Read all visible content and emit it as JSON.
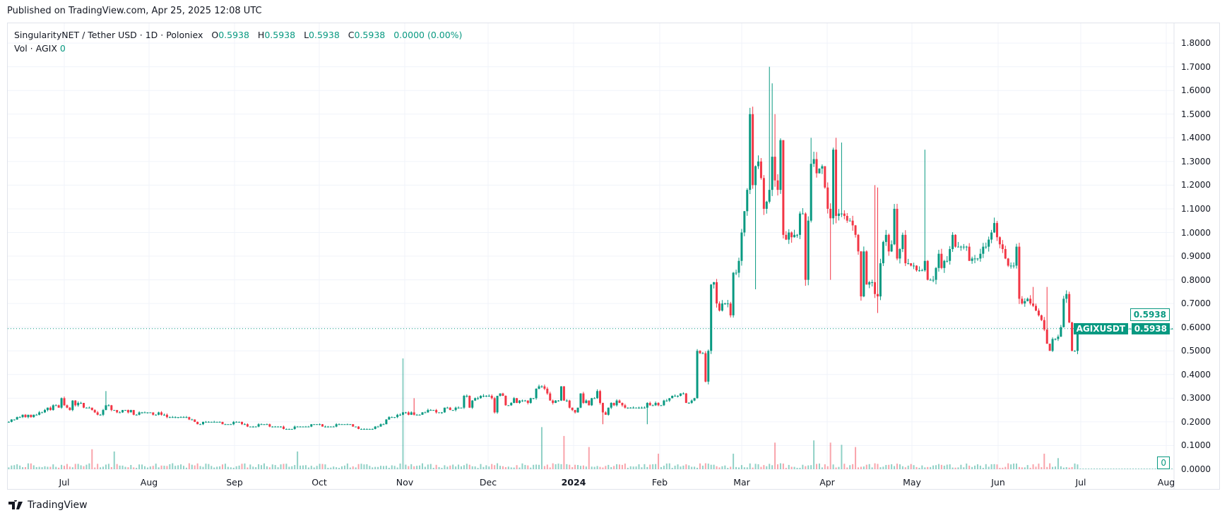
{
  "published": "Published on TradingView.com, Apr 25, 2025 12:08 UTC",
  "legend": {
    "symbol": "SingularityNET / Tether USD · 1D · Poloniex",
    "o_label": "O",
    "o": "0.5938",
    "h_label": "H",
    "h": "0.5938",
    "l_label": "L",
    "l": "0.5938",
    "c_label": "C",
    "c": "0.5938",
    "change": "0.0000 (0.00%)",
    "vol_label": "Vol · AGIX",
    "vol": "0"
  },
  "price_axis": [
    "1.8000",
    "1.7000",
    "1.6000",
    "1.5000",
    "1.4000",
    "1.3000",
    "1.2000",
    "1.1000",
    "1.0000",
    "0.9000",
    "0.8000",
    "0.7000",
    "0.6000",
    "0.5000",
    "0.4000",
    "0.3000",
    "0.2000",
    "0.1000",
    "0.0000"
  ],
  "badges": {
    "last_price_outline": "0.5938",
    "symbol_tag": "AGIXUSDT",
    "last_price": "0.5938",
    "volume": "0"
  },
  "time_axis": [
    "Jul",
    "Aug",
    "Sep",
    "Oct",
    "Nov",
    "Dec",
    "2024",
    "Feb",
    "Mar",
    "Apr",
    "May",
    "Jun",
    "Jul",
    "Aug"
  ],
  "brand": "TradingView",
  "colors": {
    "up": "#089981",
    "down": "#F23645",
    "grid": "#f0f3fa"
  },
  "chart_data": {
    "type": "candlestick",
    "title": "SingularityNET / Tether USD · 1D · Poloniex",
    "start_date": "2023-06-11",
    "interval": "1D",
    "ylim": [
      0,
      1.8
    ],
    "last_price": 0.5938,
    "close": [
      0.2,
      0.21,
      0.21,
      0.22,
      0.22,
      0.23,
      0.22,
      0.23,
      0.22,
      0.23,
      0.23,
      0.24,
      0.24,
      0.25,
      0.26,
      0.25,
      0.27,
      0.27,
      0.26,
      0.3,
      0.27,
      0.26,
      0.25,
      0.29,
      0.27,
      0.28,
      0.28,
      0.26,
      0.26,
      0.26,
      0.25,
      0.24,
      0.23,
      0.23,
      0.25,
      0.27,
      0.27,
      0.25,
      0.25,
      0.24,
      0.24,
      0.25,
      0.25,
      0.24,
      0.25,
      0.23,
      0.23,
      0.24,
      0.24,
      0.24,
      0.24,
      0.24,
      0.23,
      0.23,
      0.24,
      0.23,
      0.23,
      0.22,
      0.22,
      0.22,
      0.22,
      0.22,
      0.22,
      0.22,
      0.22,
      0.21,
      0.21,
      0.2,
      0.19,
      0.19,
      0.2,
      0.2,
      0.2,
      0.2,
      0.2,
      0.2,
      0.2,
      0.19,
      0.19,
      0.19,
      0.19,
      0.2,
      0.2,
      0.2,
      0.19,
      0.19,
      0.18,
      0.18,
      0.18,
      0.18,
      0.19,
      0.19,
      0.19,
      0.19,
      0.18,
      0.18,
      0.18,
      0.18,
      0.18,
      0.17,
      0.17,
      0.17,
      0.17,
      0.18,
      0.18,
      0.18,
      0.18,
      0.18,
      0.18,
      0.19,
      0.19,
      0.19,
      0.19,
      0.18,
      0.18,
      0.18,
      0.18,
      0.18,
      0.19,
      0.19,
      0.19,
      0.19,
      0.19,
      0.19,
      0.18,
      0.18,
      0.17,
      0.17,
      0.17,
      0.17,
      0.17,
      0.17,
      0.18,
      0.18,
      0.19,
      0.19,
      0.21,
      0.22,
      0.22,
      0.22,
      0.23,
      0.23,
      0.24,
      0.24,
      0.23,
      0.24,
      0.23,
      0.23,
      0.23,
      0.24,
      0.24,
      0.25,
      0.25,
      0.25,
      0.24,
      0.24,
      0.24,
      0.26,
      0.26,
      0.25,
      0.25,
      0.26,
      0.26,
      0.26,
      0.31,
      0.31,
      0.26,
      0.29,
      0.3,
      0.3,
      0.31,
      0.31,
      0.31,
      0.31,
      0.3,
      0.24,
      0.31,
      0.32,
      0.31,
      0.27,
      0.27,
      0.28,
      0.3,
      0.28,
      0.29,
      0.29,
      0.29,
      0.28,
      0.3,
      0.3,
      0.34,
      0.35,
      0.35,
      0.34,
      0.32,
      0.29,
      0.28,
      0.29,
      0.29,
      0.35,
      0.29,
      0.29,
      0.26,
      0.25,
      0.24,
      0.26,
      0.32,
      0.28,
      0.29,
      0.27,
      0.3,
      0.3,
      0.33,
      0.28,
      0.24,
      0.23,
      0.26,
      0.28,
      0.27,
      0.29,
      0.28,
      0.27,
      0.26,
      0.26,
      0.26,
      0.26,
      0.26,
      0.26,
      0.26,
      0.26,
      0.28,
      0.27,
      0.27,
      0.28,
      0.27,
      0.27,
      0.29,
      0.29,
      0.3,
      0.31,
      0.31,
      0.31,
      0.32,
      0.32,
      0.28,
      0.28,
      0.29,
      0.3,
      0.5,
      0.49,
      0.49,
      0.37,
      0.5,
      0.78,
      0.79,
      0.7,
      0.67,
      0.7,
      0.7,
      0.7,
      0.65,
      0.83,
      0.83,
      0.88,
      1.0,
      1.09,
      1.18,
      1.5,
      1.2,
      1.28,
      1.3,
      1.23,
      1.1,
      1.13,
      1.18,
      1.32,
      1.22,
      1.18,
      1.39,
      0.99,
      0.97,
      1.0,
      0.98,
      0.99,
      0.99,
      1.08,
      1.08,
      0.8,
      1.05,
      1.29,
      1.31,
      1.25,
      1.27,
      1.28,
      1.19,
      1.1,
      1.06,
      1.35,
      1.07,
      1.08,
      1.08,
      1.07,
      1.05,
      1.05,
      1.03,
      0.99,
      0.92,
      0.73,
      0.92,
      0.78,
      0.79,
      0.79,
      0.74,
      0.73,
      0.87,
      0.96,
      0.99,
      0.92,
      0.95,
      1.1,
      0.89,
      0.93,
      0.99,
      0.87,
      0.87,
      0.86,
      0.86,
      0.84,
      0.84,
      0.84,
      0.88,
      0.8,
      0.8,
      0.8,
      0.85,
      0.91,
      0.85,
      0.88,
      0.88,
      0.93,
      0.99,
      0.94,
      0.94,
      0.94,
      0.94,
      0.94,
      0.88,
      0.89,
      0.89,
      0.89,
      0.91,
      0.94,
      0.94,
      0.97,
      1.0,
      1.04,
      0.98,
      0.95,
      0.93,
      0.89,
      0.86,
      0.86,
      0.86,
      0.94,
      0.72,
      0.7,
      0.71,
      0.72,
      0.7,
      0.69,
      0.67,
      0.65,
      0.63,
      0.59,
      0.53,
      0.5,
      0.55,
      0.55,
      0.56,
      0.6,
      0.72,
      0.74,
      0.62,
      0.5,
      0.5,
      0.5938
    ],
    "wick_highs": {
      "35": 0.33,
      "146": 0.3,
      "274": 1.7,
      "275": 1.63,
      "276": 1.5,
      "289": 1.4,
      "298": 1.4,
      "300": 1.38,
      "312": 1.2,
      "313": 1.19,
      "330": 1.35,
      "369": 0.77,
      "374": 0.77
    },
    "wick_lows": {
      "269": 0.76,
      "296": 0.8,
      "313": 0.66,
      "214": 0.19,
      "230": 0.19
    },
    "volume": {
      "base": 3,
      "spikes": {
        "30": 18,
        "38": 16,
        "104": 16,
        "142": 100,
        "192": 38,
        "200": 30,
        "209": 20,
        "234": 14,
        "261": 14,
        "276": 24,
        "290": 26,
        "296": 24,
        "300": 22,
        "305": 20,
        "373": 14,
        "378": 10
      }
    }
  }
}
